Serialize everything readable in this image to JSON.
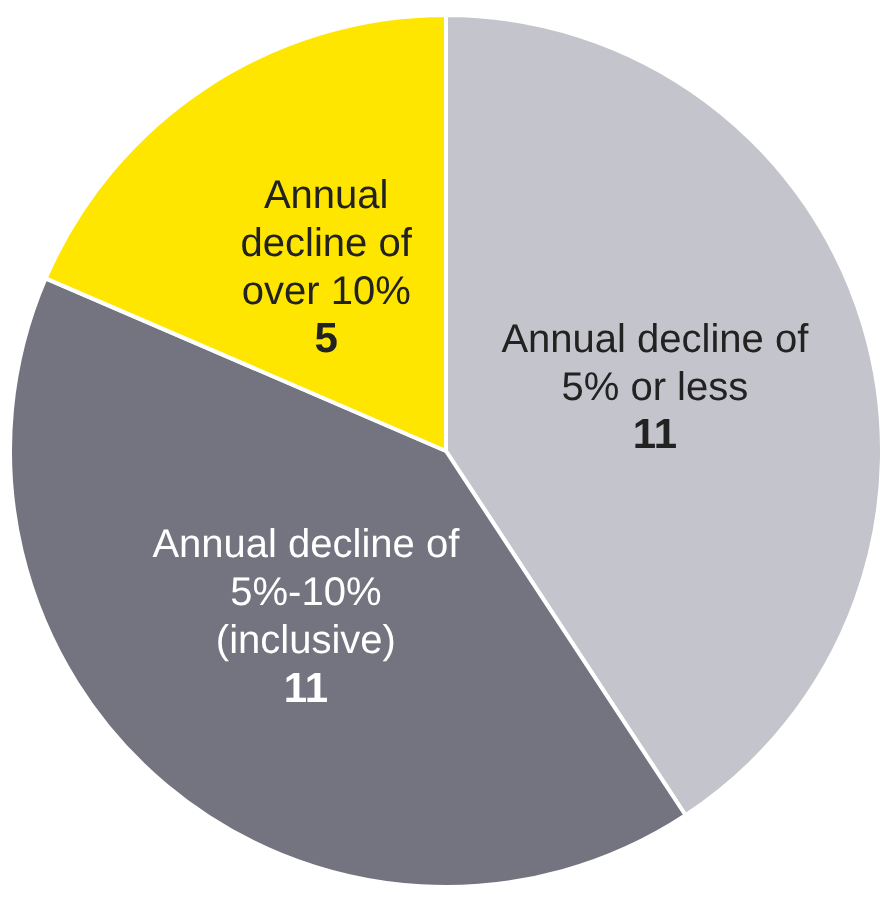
{
  "chart_data": {
    "type": "pie",
    "categories": [
      "Annual decline of 5% or less",
      "Annual decline of 5%-10% (inclusive)",
      "Annual decline of over 10%"
    ],
    "values": [
      11,
      11,
      5
    ],
    "colors": [
      "#c4c4cc",
      "#747480",
      "#ffe600"
    ],
    "data_labels": true,
    "legend": false
  }
}
